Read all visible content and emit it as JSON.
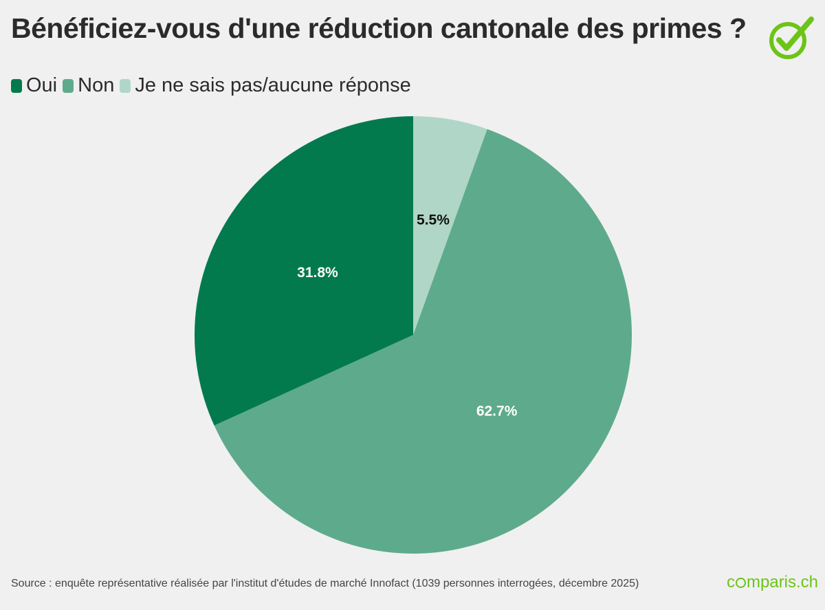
{
  "header": {
    "title": "Bénéficiez-vous d'une réduction cantonale des primes ?"
  },
  "legend": {
    "items": [
      {
        "label": "Oui",
        "color": "#037a4e"
      },
      {
        "label": "Non",
        "color": "#5eaa8d"
      },
      {
        "label": "Je ne sais pas/aucune réponse",
        "color": "#b0d6c8"
      }
    ]
  },
  "chart_data": {
    "type": "pie",
    "title": "Bénéficiez-vous d'une réduction cantonale des primes ?",
    "slices": [
      {
        "label": "Je ne sais pas/aucune réponse",
        "value": 5.5,
        "value_label": "5.5%",
        "color": "#b0d6c8",
        "label_color": "#111111"
      },
      {
        "label": "Non",
        "value": 62.7,
        "value_label": "62.7%",
        "color": "#5eaa8d",
        "label_color": "#ffffff"
      },
      {
        "label": "Oui",
        "value": 31.8,
        "value_label": "31.8%",
        "color": "#037a4e",
        "label_color": "#ffffff"
      }
    ],
    "start": "top",
    "direction": "clockwise",
    "legend_position": "top-left"
  },
  "footer": {
    "source": "Source : enquête représentative réalisée par l'institut d'études de marché Innofact (1039 personnes interrogées, décembre 2025)",
    "brand_prefix": "c",
    "brand_suffix": "mparis.ch"
  },
  "icons": {
    "logo": "comparis-check-icon",
    "logo_color": "#6cc417"
  }
}
